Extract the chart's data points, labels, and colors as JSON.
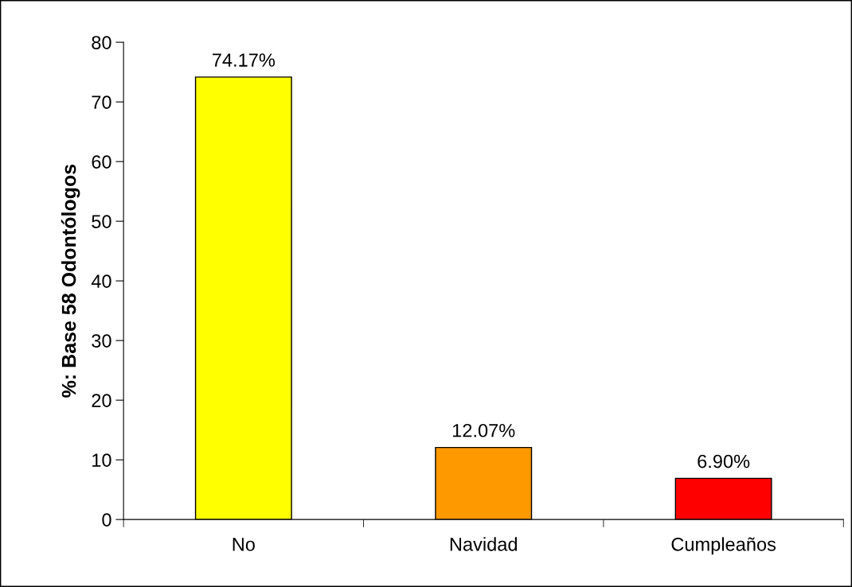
{
  "chart_data": {
    "type": "bar",
    "ylabel": "%: Base 58 Odontólogos",
    "categories": [
      "No",
      "Navidad",
      "Cumpleaños"
    ],
    "values": [
      74.17,
      12.07,
      6.9
    ],
    "colors": [
      "#ffff00",
      "#ff9900",
      "#ff0000"
    ],
    "value_labels": [
      "74.17%",
      "12.07%",
      "6.90%"
    ],
    "ylim": [
      0,
      80
    ],
    "yticks": [
      0,
      10,
      20,
      30,
      40,
      50,
      60,
      70,
      80
    ],
    "grid": false,
    "legend": false
  }
}
